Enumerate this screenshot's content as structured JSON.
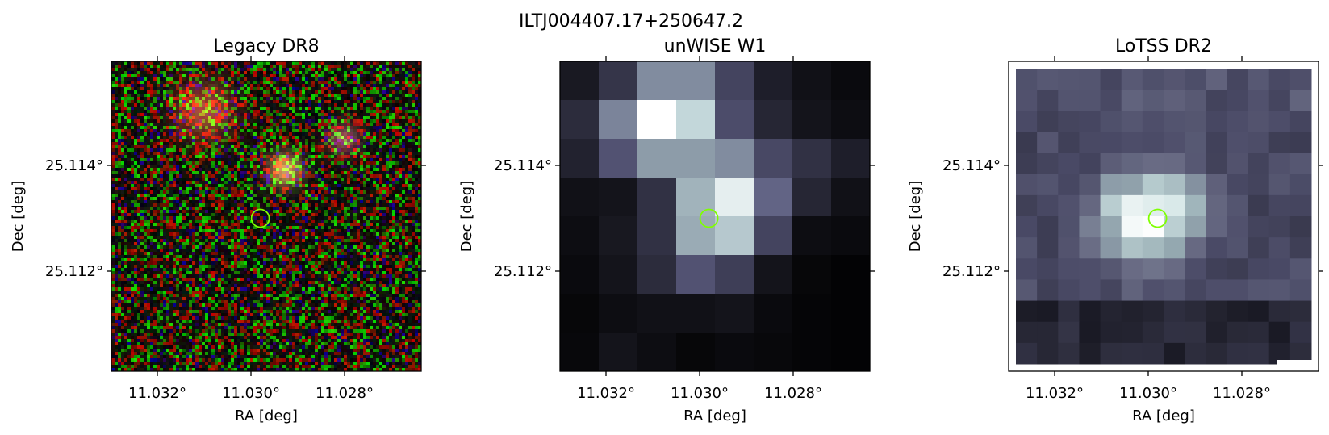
{
  "figure": {
    "title": "ILTJ004407.17+250647.2",
    "colors": {
      "marker": "#7fff00",
      "frame": "#000000",
      "unwise_colormap": [
        "#000000",
        "#1c1c26",
        "#3b3b52",
        "#5c5c80",
        "#8f9fab",
        "#c8dcde",
        "#ffffff"
      ],
      "lotss_colormap": [
        "#101018",
        "#2b2b3a",
        "#4a4a66",
        "#6d7088",
        "#99aeb5",
        "#cfe3e3",
        "#ffffff"
      ]
    },
    "marker": {
      "shape": "circle",
      "ra": 11.0298,
      "dec": 25.113
    },
    "panels": [
      {
        "title": "Legacy DR8",
        "kind": "rgb-noise",
        "xlabel": "RA [deg]",
        "ylabel": "Dec [deg]",
        "xticks": [
          {
            "value": 11.032,
            "label": "11.032°"
          },
          {
            "value": 11.03,
            "label": "11.030°"
          },
          {
            "value": 11.028,
            "label": "11.028°"
          }
        ],
        "yticks": [
          {
            "value": 25.114,
            "label": "25.114°"
          },
          {
            "value": 25.112,
            "label": "25.112°"
          }
        ]
      },
      {
        "title": "unWISE W1",
        "kind": "grid",
        "xlabel": "RA [deg]",
        "ylabel": "Dec [deg]",
        "xticks": [
          {
            "value": 11.032,
            "label": "11.032°"
          },
          {
            "value": 11.03,
            "label": "11.030°"
          },
          {
            "value": 11.028,
            "label": "11.028°"
          }
        ],
        "yticks": [
          {
            "value": 25.114,
            "label": "25.114°"
          },
          {
            "value": 25.112,
            "label": "25.112°"
          }
        ]
      },
      {
        "title": "LoTSS DR2",
        "kind": "grid",
        "xlabel": "RA [deg]",
        "ylabel": "Dec [deg]",
        "xticks": [
          {
            "value": 11.032,
            "label": "11.032°"
          },
          {
            "value": 11.03,
            "label": "11.030°"
          },
          {
            "value": 11.028,
            "label": "11.028°"
          }
        ],
        "yticks": [
          {
            "value": 25.114,
            "label": "25.114°"
          },
          {
            "value": 25.112,
            "label": "25.112°"
          }
        ]
      }
    ]
  }
}
